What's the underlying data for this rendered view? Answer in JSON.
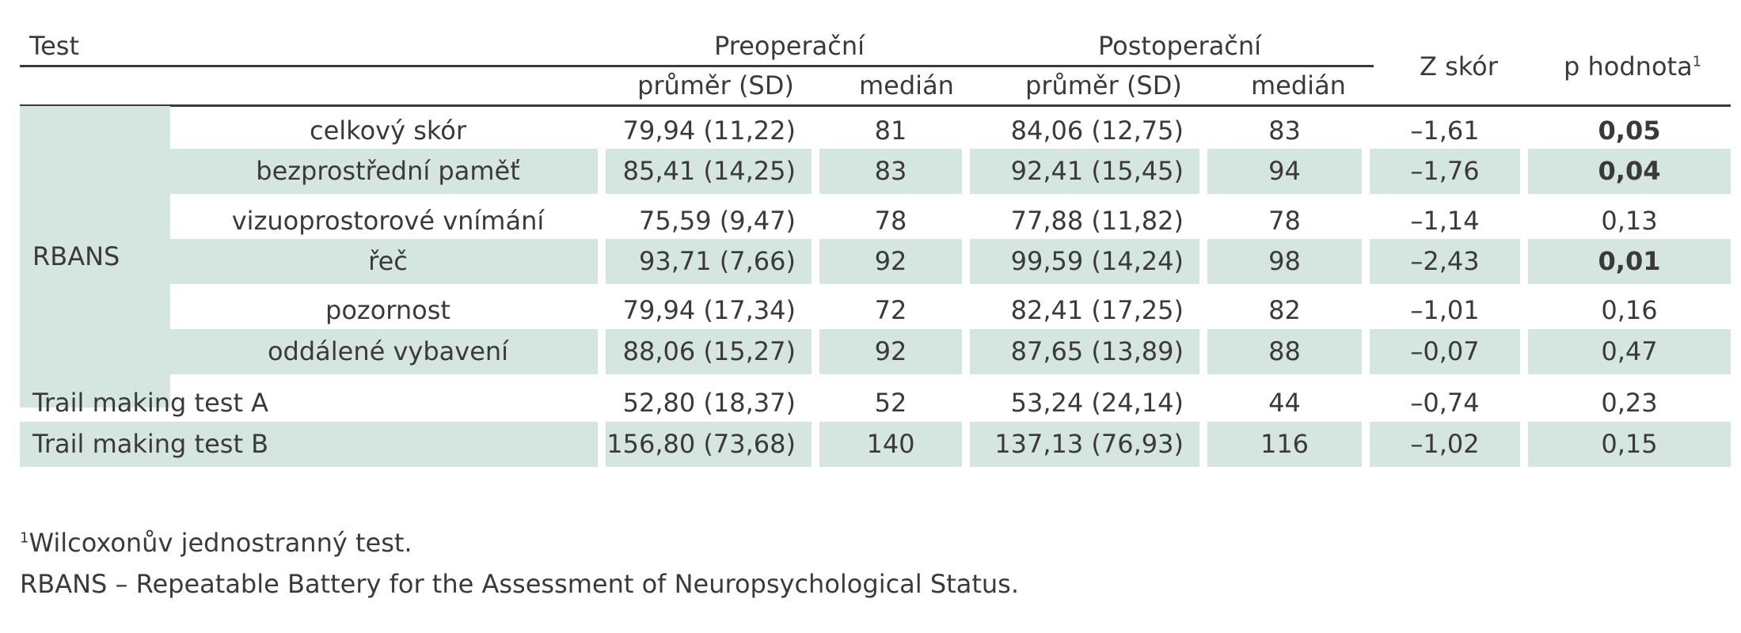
{
  "header": {
    "test": "Test",
    "preop": "Preoperační",
    "postop": "Postoperační",
    "mean_sd": "průměr (SD)",
    "median": "medián",
    "z_score": "Z skór",
    "p_value": "p hodnota",
    "p_value_sup": "1"
  },
  "rbans_label": "RBANS",
  "rows": [
    {
      "name": "celkový skór",
      "pre_mean": "79,94 (11,22)",
      "pre_median": "81",
      "post_mean": "84,06 (12,75)",
      "post_median": "83",
      "z": "–1,61",
      "p": "0,05",
      "p_bold": true
    },
    {
      "name": "bezprostřední paměť",
      "pre_mean": "85,41 (14,25)",
      "pre_median": "83",
      "post_mean": "92,41 (15,45)",
      "post_median": "94",
      "z": "–1,76",
      "p": "0,04",
      "p_bold": true
    },
    {
      "name": "vizuoprostorové vnímání",
      "pre_mean": "75,59 (9,47)",
      "pre_median": "78",
      "post_mean": "77,88 (11,82)",
      "post_median": "78",
      "z": "–1,14",
      "p": "0,13",
      "p_bold": false
    },
    {
      "name": "řeč",
      "pre_mean": "93,71 (7,66)",
      "pre_median": "92",
      "post_mean": "99,59 (14,24)",
      "post_median": "98",
      "z": "–2,43",
      "p": "0,01",
      "p_bold": true
    },
    {
      "name": "pozornost",
      "pre_mean": "79,94 (17,34)",
      "pre_median": "72",
      "post_mean": "82,41 (17,25)",
      "post_median": "82",
      "z": "–1,01",
      "p": "0,16",
      "p_bold": false
    },
    {
      "name": "oddálené vybavení",
      "pre_mean": "88,06 (15,27)",
      "pre_median": "92",
      "post_mean": "87,65 (13,89)",
      "post_median": "88",
      "z": "–0,07",
      "p": "0,47",
      "p_bold": false
    },
    {
      "name": "Trail making test A",
      "pre_mean": "52,80 (18,37)",
      "pre_median": "52",
      "post_mean": "53,24 (24,14)",
      "post_median": "44",
      "z": "–0,74",
      "p": "0,23",
      "p_bold": false
    },
    {
      "name": "Trail making test B",
      "pre_mean": "156,80 (73,68)",
      "pre_median": "140",
      "post_mean": "137,13 (76,93)",
      "post_median": "116",
      "z": "–1,02",
      "p": "0,15",
      "p_bold": false
    }
  ],
  "footnotes": {
    "fn1_sup": "1",
    "fn1_text": "Wilcoxonův  jednostranný test.",
    "fn2_text": "RBANS – Repeatable Battery for the Assessment of Neuropsychological Status."
  },
  "colors": {
    "shade": "#d5e5e0",
    "text": "#3a3a3a",
    "rule": "#3a3a3a"
  }
}
